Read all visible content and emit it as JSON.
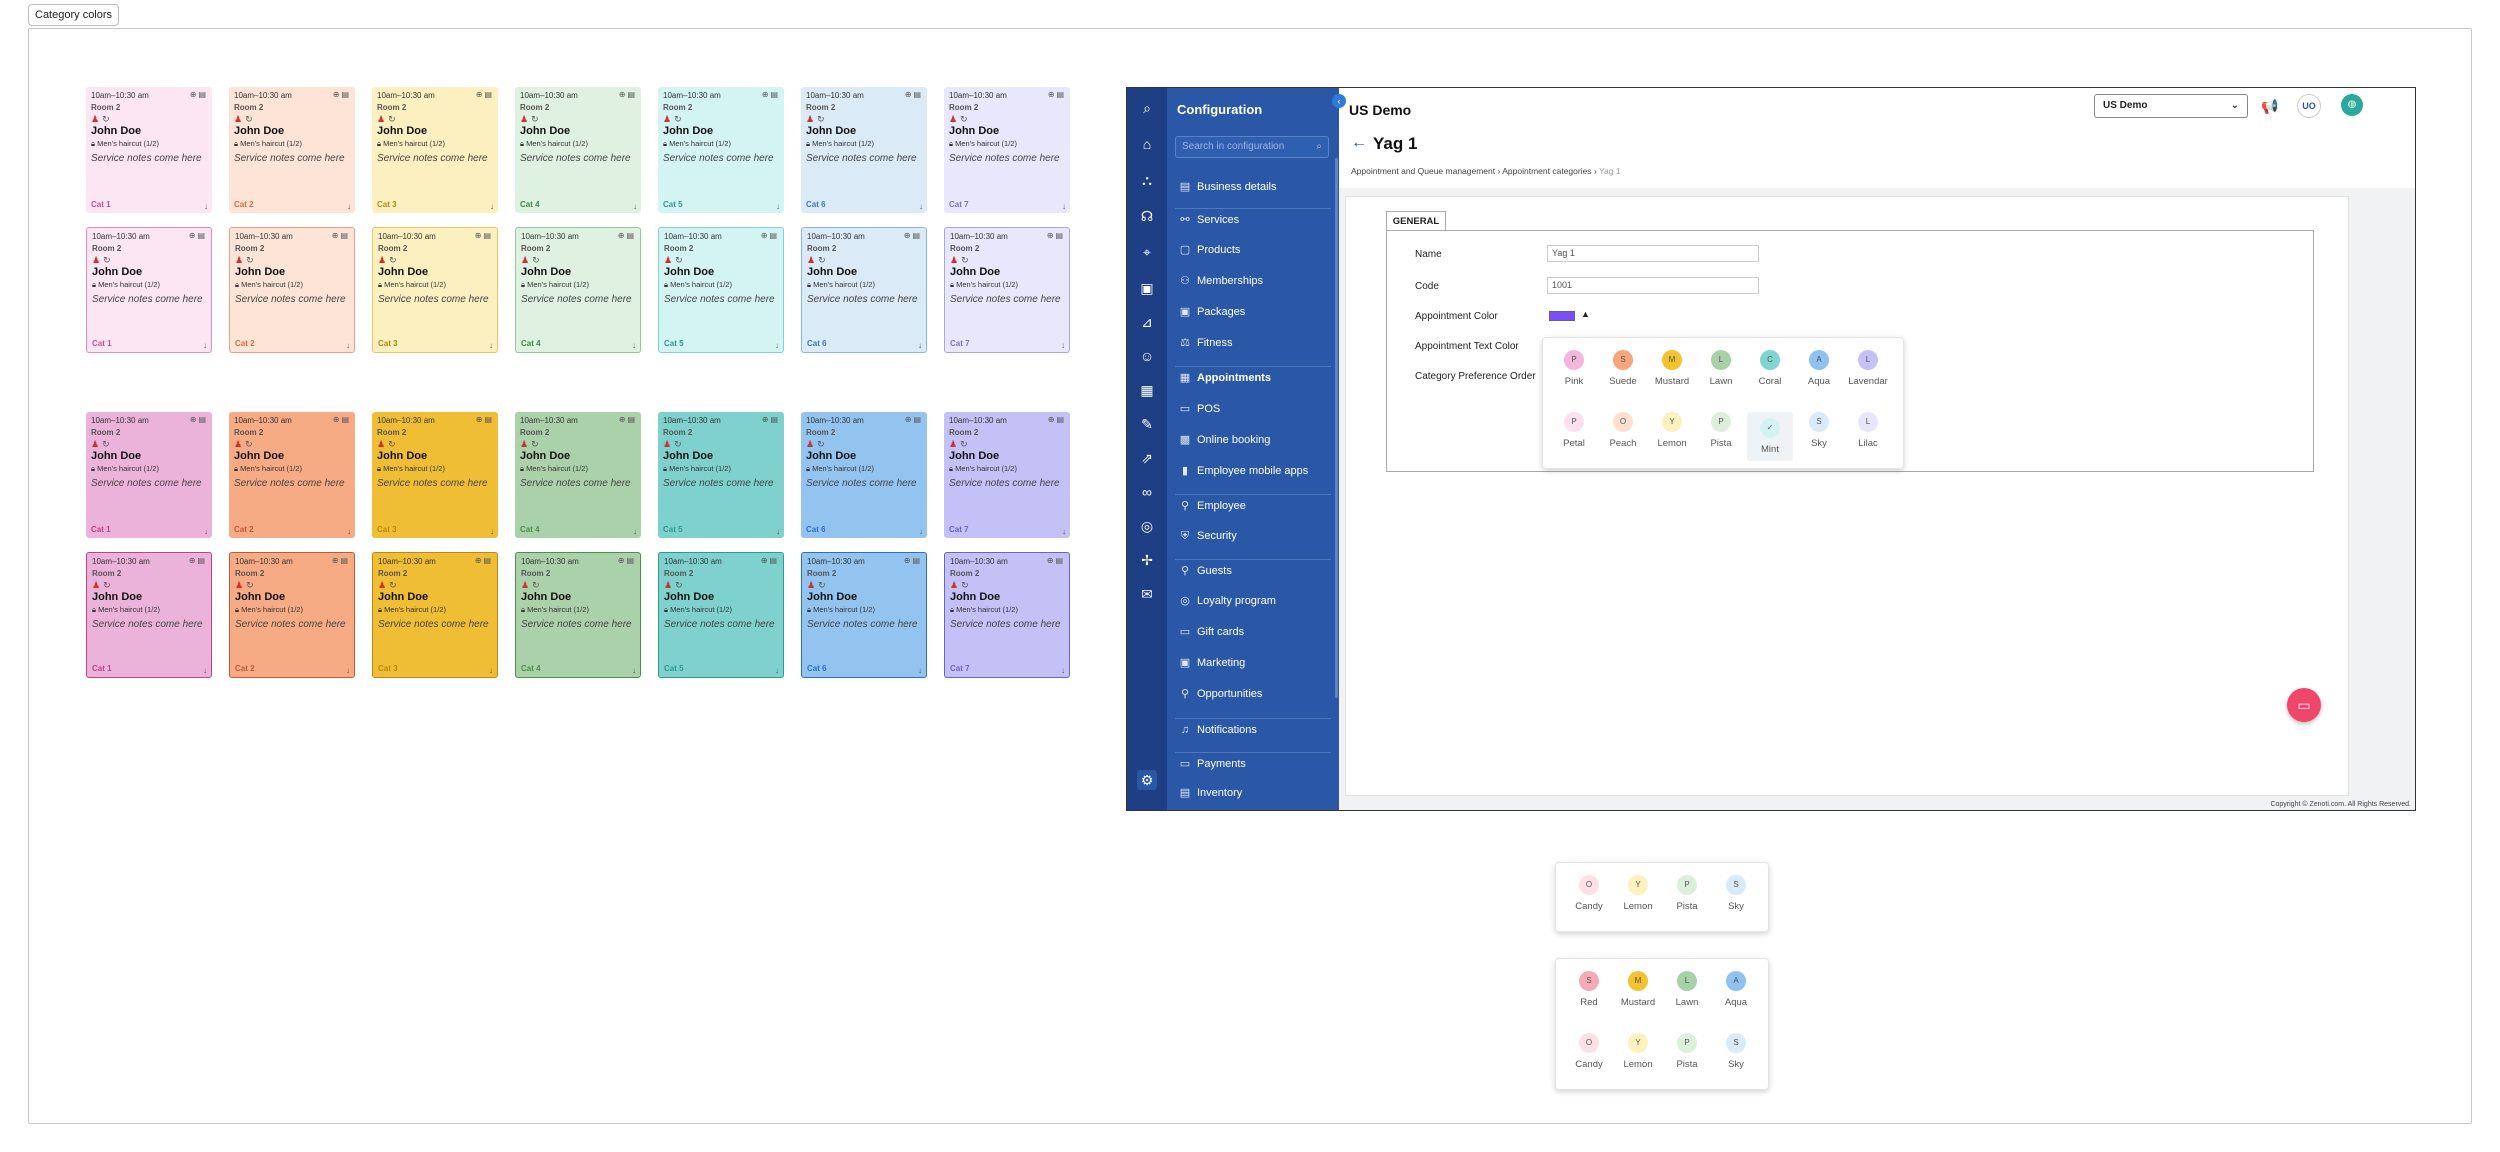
{
  "tag_label": "Category colors",
  "card_template": {
    "time": "10am–10:30 am",
    "room": "Room 2",
    "name": "John Doe",
    "service": "Men's haircut (1/2)",
    "notes": "Service notes come here"
  },
  "categories": [
    "Cat 1",
    "Cat 2",
    "Cat 3",
    "Cat 4",
    "Cat 5",
    "Cat 6",
    "Cat 7"
  ],
  "palette_light": [
    "#fbe6f2",
    "#fde4d6",
    "#fdf0c0",
    "#dff1e0",
    "#d4f4f4",
    "#dbeaf7",
    "#e8e7fb"
  ],
  "palette_light_border": [
    "#e88ac0",
    "#f0a080",
    "#e8c85a",
    "#90c898",
    "#7dd3d3",
    "#8ab6e6",
    "#a9a5ea"
  ],
  "palette_dark": [
    "#ecb3da",
    "#f7ab84",
    "#f0be35",
    "#abd1ab",
    "#7ed1cd",
    "#93c4f0",
    "#c4c1f6"
  ],
  "palette_dark_border": [
    "#c0408c",
    "#c05a30",
    "#b88a10",
    "#4a904a",
    "#2a9a94",
    "#2a6ec8",
    "#6a63cc"
  ],
  "cat_text_light": [
    "#d24a9a",
    "#e06a40",
    "#b08a10",
    "#3a8a45",
    "#2a9a94",
    "#3a78c0",
    "#7a70cc"
  ],
  "app": {
    "nav_title": "Configuration",
    "search_placeholder": "Search in configuration",
    "nav_items": [
      "Business details",
      "Services",
      "Products",
      "Memberships",
      "Packages",
      "Fitness",
      "Appointments",
      "POS",
      "Online booking",
      "Employee mobile apps",
      "Employee",
      "Security",
      "Guests",
      "Loyalty program",
      "Gift cards",
      "Marketing",
      "Opportunities",
      "Notifications",
      "Payments",
      "Inventory"
    ],
    "header_title": "US Demo",
    "store_select": "US Demo",
    "user_initials": "UO",
    "page_title": "Yag 1",
    "breadcrumb": [
      "Appointment and Queue management",
      "Appointment categories",
      "Yag 1"
    ],
    "tab": "GENERAL",
    "labels": {
      "name": "Name",
      "code": "Code",
      "appt_color": "Appointment Color",
      "appt_text_color": "Appointment Text Color",
      "pref_order": "Category Preference Order"
    },
    "values": {
      "name": "Yag 1",
      "code": "1001"
    },
    "copyright": "Copyright © Zenoti.com. All Rights Reserved."
  },
  "picker_main": [
    {
      "letter": "P",
      "label": "Pink",
      "color": "#f3b6dc"
    },
    {
      "letter": "S",
      "label": "Suede",
      "color": "#f6a67c"
    },
    {
      "letter": "M",
      "label": "Mustard",
      "color": "#f2c230"
    },
    {
      "letter": "L",
      "label": "Lawn",
      "color": "#a9d1a8"
    },
    {
      "letter": "C",
      "label": "Coral",
      "color": "#82d4d0"
    },
    {
      "letter": "A",
      "label": "Aqua",
      "color": "#8fc2f0"
    },
    {
      "letter": "L",
      "label": "Lavendar",
      "color": "#c5c1f4"
    },
    {
      "letter": "P",
      "label": "Petal",
      "color": "#fbe1f0"
    },
    {
      "letter": "O",
      "label": "Peach",
      "color": "#fde0d0"
    },
    {
      "letter": "Y",
      "label": "Lemon",
      "color": "#fdf1bd"
    },
    {
      "letter": "P",
      "label": "Pista",
      "color": "#dcefdb"
    },
    {
      "letter": "✓",
      "label": "Mint",
      "color": "#d2f3f1"
    },
    {
      "letter": "S",
      "label": "Sky",
      "color": "#d9eaf8"
    },
    {
      "letter": "L",
      "label": "Lilac",
      "color": "#e7e6fb"
    }
  ],
  "picker_small": [
    {
      "letter": "O",
      "label": "Candy",
      "color": "#fde0e6"
    },
    {
      "letter": "Y",
      "label": "Lemon",
      "color": "#fdf1bd"
    },
    {
      "letter": "P",
      "label": "Pista",
      "color": "#dcefdb"
    },
    {
      "letter": "S",
      "label": "Sky",
      "color": "#d9eaf8"
    }
  ],
  "picker_third": [
    {
      "letter": "S",
      "label": "Red",
      "color": "#f6a9b6"
    },
    {
      "letter": "M",
      "label": "Mustard",
      "color": "#f2c230"
    },
    {
      "letter": "L",
      "label": "Lawn",
      "color": "#a9d1a8"
    },
    {
      "letter": "A",
      "label": "Aqua",
      "color": "#8fc2f0"
    },
    {
      "letter": "O",
      "label": "Candy",
      "color": "#fde0e6"
    },
    {
      "letter": "Y",
      "label": "Lemon",
      "color": "#fdf1bd"
    },
    {
      "letter": "P",
      "label": "Pista",
      "color": "#dcefdb"
    },
    {
      "letter": "S",
      "label": "Sky",
      "color": "#d9eaf8"
    }
  ]
}
